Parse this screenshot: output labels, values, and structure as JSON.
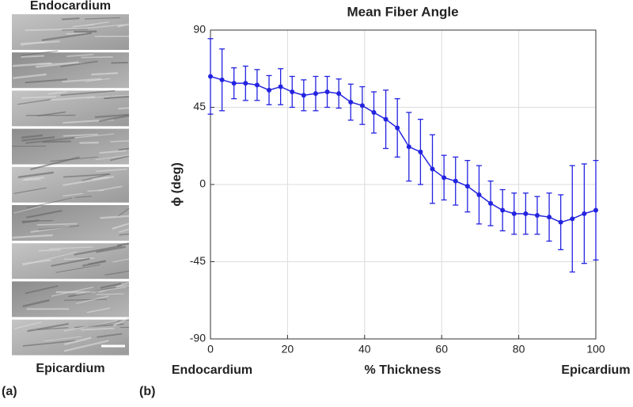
{
  "panel_a": {
    "label": "(a)",
    "top_label": "Endocardium",
    "bottom_label": "Epicardium"
  },
  "panel_b_label": "(b)",
  "chart_data": {
    "type": "line",
    "title": "Mean Fiber Angle",
    "xlabel": "% Thickness",
    "ylabel": "ϕ (deg)",
    "x_end_labels": [
      "Endocardium",
      "Epicardium"
    ],
    "x": [
      0,
      3,
      6.1,
      9.1,
      12.1,
      15.2,
      18.2,
      21.2,
      24.2,
      27.3,
      30.3,
      33.3,
      36.4,
      39.4,
      42.4,
      45.5,
      48.5,
      51.5,
      54.5,
      57.6,
      60.6,
      63.6,
      66.7,
      69.7,
      72.7,
      75.8,
      78.8,
      81.8,
      84.8,
      87.9,
      90.9,
      93.9,
      97,
      100
    ],
    "series": [
      {
        "color": "#2323e0",
        "values": [
          63,
          61,
          59,
          59,
          58,
          55,
          57,
          54,
          52,
          53,
          54,
          53,
          48,
          46,
          42,
          38,
          33,
          22,
          19,
          9,
          4,
          2,
          -1,
          -6,
          -11,
          -15,
          -17,
          -17,
          -18,
          -19,
          -22,
          -20,
          -17,
          -15
        ],
        "errors": [
          22,
          18,
          9,
          10,
          9,
          8.5,
          10.5,
          9,
          9,
          10,
          9,
          8.5,
          10.5,
          11,
          12,
          17,
          17,
          20,
          19,
          20,
          13,
          14,
          15,
          17,
          13,
          12,
          12,
          12,
          11,
          14,
          16,
          31,
          29,
          29
        ]
      }
    ],
    "xlim": [
      0,
      100
    ],
    "xticks": [
      0,
      20,
      40,
      60,
      80,
      100
    ],
    "ylim": [
      -90,
      90
    ],
    "yticks": [
      -90,
      -45,
      0,
      45,
      90
    ],
    "grid": true
  }
}
